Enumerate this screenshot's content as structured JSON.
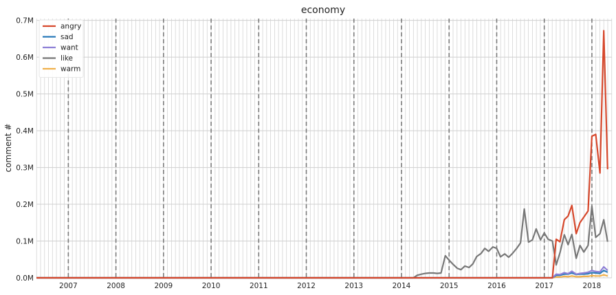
{
  "chart_data": {
    "type": "line",
    "title": "economy",
    "xlabel": "",
    "ylabel": "comment #",
    "xlim": [
      2006.33,
      2018.42
    ],
    "ylim": [
      0,
      0.705
    ],
    "y_unit": "M",
    "grid": true,
    "minor_x_grid": "monthly",
    "legend_position": "top-left",
    "x_ticks": [
      2007,
      2008,
      2009,
      2010,
      2011,
      2012,
      2013,
      2014,
      2015,
      2016,
      2017,
      2018
    ],
    "x_tick_labels": [
      "2007",
      "2008",
      "2009",
      "2010",
      "2011",
      "2012",
      "2013",
      "2014",
      "2015",
      "2016",
      "2017",
      "2018"
    ],
    "y_ticks": [
      0,
      0.1,
      0.2,
      0.3,
      0.4,
      0.5,
      0.6,
      0.7
    ],
    "y_tick_labels": [
      "0.0M",
      "0.1M",
      "0.2M",
      "0.3M",
      "0.4M",
      "0.5M",
      "0.6M",
      "0.7M"
    ],
    "vertical_dashed_lines": [
      2007,
      2008,
      2009,
      2010,
      2011,
      2012,
      2013,
      2014,
      2015,
      2016,
      2017,
      2018
    ],
    "series": [
      {
        "name": "angry",
        "color": "#d6472b",
        "points": [
          [
            2006.33,
            0
          ],
          [
            2017.0,
            0
          ],
          [
            2017.17,
            0.0
          ],
          [
            2017.25,
            0.105
          ],
          [
            2017.33,
            0.098
          ],
          [
            2017.42,
            0.158
          ],
          [
            2017.5,
            0.168
          ],
          [
            2017.58,
            0.197
          ],
          [
            2017.67,
            0.12
          ],
          [
            2017.75,
            0.15
          ],
          [
            2017.83,
            0.165
          ],
          [
            2017.92,
            0.182
          ],
          [
            2018.0,
            0.385
          ],
          [
            2018.08,
            0.39
          ],
          [
            2018.17,
            0.285
          ],
          [
            2018.25,
            0.672
          ],
          [
            2018.33,
            0.295
          ]
        ]
      },
      {
        "name": "sad",
        "color": "#2b7bba",
        "points": [
          [
            2006.33,
            0
          ],
          [
            2017.0,
            0
          ],
          [
            2017.17,
            0.0
          ],
          [
            2017.25,
            0.007
          ],
          [
            2017.33,
            0.007
          ],
          [
            2017.42,
            0.01
          ],
          [
            2017.5,
            0.01
          ],
          [
            2017.58,
            0.013
          ],
          [
            2017.67,
            0.009
          ],
          [
            2017.75,
            0.01
          ],
          [
            2017.83,
            0.01
          ],
          [
            2017.92,
            0.011
          ],
          [
            2018.0,
            0.014
          ],
          [
            2018.08,
            0.013
          ],
          [
            2018.17,
            0.012
          ],
          [
            2018.25,
            0.02
          ],
          [
            2018.33,
            0.015
          ]
        ]
      },
      {
        "name": "want",
        "color": "#8d7fd6",
        "points": [
          [
            2006.33,
            0
          ],
          [
            2017.0,
            0
          ],
          [
            2017.17,
            0.0
          ],
          [
            2017.25,
            0.01
          ],
          [
            2017.33,
            0.009
          ],
          [
            2017.42,
            0.014
          ],
          [
            2017.5,
            0.011
          ],
          [
            2017.58,
            0.018
          ],
          [
            2017.67,
            0.01
          ],
          [
            2017.75,
            0.012
          ],
          [
            2017.83,
            0.013
          ],
          [
            2017.92,
            0.015
          ],
          [
            2018.0,
            0.02
          ],
          [
            2018.08,
            0.017
          ],
          [
            2018.17,
            0.016
          ],
          [
            2018.25,
            0.03
          ],
          [
            2018.33,
            0.02
          ]
        ]
      },
      {
        "name": "like",
        "color": "#777777",
        "points": [
          [
            2006.33,
            0
          ],
          [
            2014.25,
            0
          ],
          [
            2014.33,
            0.007
          ],
          [
            2014.42,
            0.01
          ],
          [
            2014.5,
            0.012
          ],
          [
            2014.58,
            0.013
          ],
          [
            2014.67,
            0.013
          ],
          [
            2014.75,
            0.012
          ],
          [
            2014.83,
            0.013
          ],
          [
            2014.92,
            0.06
          ],
          [
            2015.0,
            0.048
          ],
          [
            2015.08,
            0.037
          ],
          [
            2015.17,
            0.026
          ],
          [
            2015.25,
            0.022
          ],
          [
            2015.33,
            0.032
          ],
          [
            2015.42,
            0.028
          ],
          [
            2015.5,
            0.038
          ],
          [
            2015.58,
            0.058
          ],
          [
            2015.67,
            0.066
          ],
          [
            2015.75,
            0.08
          ],
          [
            2015.83,
            0.072
          ],
          [
            2015.92,
            0.084
          ],
          [
            2016.0,
            0.08
          ],
          [
            2016.08,
            0.057
          ],
          [
            2016.17,
            0.065
          ],
          [
            2016.25,
            0.056
          ],
          [
            2016.33,
            0.066
          ],
          [
            2016.42,
            0.08
          ],
          [
            2016.5,
            0.095
          ],
          [
            2016.58,
            0.187
          ],
          [
            2016.67,
            0.097
          ],
          [
            2016.75,
            0.103
          ],
          [
            2016.83,
            0.133
          ],
          [
            2016.92,
            0.103
          ],
          [
            2017.0,
            0.122
          ],
          [
            2017.08,
            0.105
          ],
          [
            2017.17,
            0.1
          ],
          [
            2017.25,
            0.035
          ],
          [
            2017.33,
            0.068
          ],
          [
            2017.42,
            0.117
          ],
          [
            2017.5,
            0.09
          ],
          [
            2017.58,
            0.118
          ],
          [
            2017.67,
            0.053
          ],
          [
            2017.75,
            0.088
          ],
          [
            2017.83,
            0.07
          ],
          [
            2017.92,
            0.088
          ],
          [
            2018.0,
            0.195
          ],
          [
            2018.08,
            0.11
          ],
          [
            2018.17,
            0.12
          ],
          [
            2018.25,
            0.158
          ],
          [
            2018.33,
            0.098
          ]
        ]
      },
      {
        "name": "warm",
        "color": "#f0b04a",
        "points": [
          [
            2006.33,
            0
          ],
          [
            2017.0,
            0
          ],
          [
            2017.17,
            0.0
          ],
          [
            2017.25,
            0.002
          ],
          [
            2017.33,
            0.002
          ],
          [
            2017.42,
            0.004
          ],
          [
            2017.5,
            0.003
          ],
          [
            2017.58,
            0.005
          ],
          [
            2017.67,
            0.003
          ],
          [
            2017.75,
            0.003
          ],
          [
            2017.83,
            0.004
          ],
          [
            2017.92,
            0.004
          ],
          [
            2018.0,
            0.006
          ],
          [
            2018.08,
            0.005
          ],
          [
            2018.17,
            0.005
          ],
          [
            2018.25,
            0.008
          ],
          [
            2018.33,
            0.005
          ]
        ]
      }
    ]
  }
}
